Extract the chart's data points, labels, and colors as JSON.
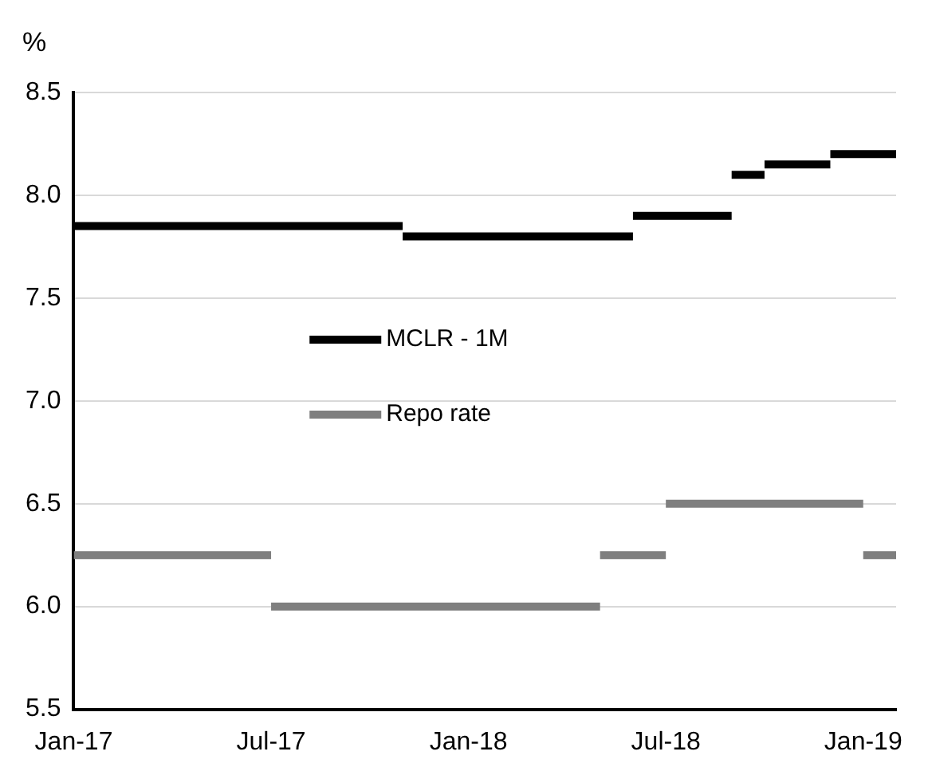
{
  "chart_data": {
    "type": "line",
    "ylabel": "%",
    "xlim": [
      "2017-01",
      "2019-02"
    ],
    "xticks": [
      {
        "value": "2017-01",
        "label": "Jan-17"
      },
      {
        "value": "2017-07",
        "label": "Jul-17"
      },
      {
        "value": "2018-01",
        "label": "Jan-18"
      },
      {
        "value": "2018-07",
        "label": "Jul-18"
      },
      {
        "value": "2019-01",
        "label": "Jan-19"
      }
    ],
    "ylim": [
      5.5,
      8.5
    ],
    "yticks": [
      {
        "value": 5.5,
        "label": "5.5"
      },
      {
        "value": 6,
        "label": "6.0"
      },
      {
        "value": 6.5,
        "label": "6.5"
      },
      {
        "value": 7,
        "label": "7.0"
      },
      {
        "value": 7.5,
        "label": "7.5"
      },
      {
        "value": 8,
        "label": "8.0"
      },
      {
        "value": 8.5,
        "label": "8.5"
      }
    ],
    "grid": "y",
    "legend": "center",
    "marker": "none",
    "line_style": "solid",
    "series": [
      {
        "name": "MCLR - 1M",
        "color": "#000000",
        "x": [
          "2017-01",
          "2017-11",
          "2017-11",
          "2018-06",
          "2018-06",
          "2018-09",
          "2018-09",
          "2018-10",
          "2018-10",
          "2018-12",
          "2018-12",
          "2019-02"
        ],
        "values": [
          7.85,
          7.85,
          7.8,
          7.8,
          7.9,
          7.9,
          8.1,
          8.1,
          8.15,
          8.15,
          8.2,
          8.2
        ]
      },
      {
        "name": "Repo rate",
        "color": "#7f7f7f",
        "x": [
          "2017-01",
          "2017-07",
          "2017-07",
          "2018-05",
          "2018-05",
          "2018-07",
          "2018-07",
          "2019-01",
          "2019-01",
          "2019-02"
        ],
        "values": [
          6.25,
          6.25,
          6,
          6,
          6.25,
          6.25,
          6.5,
          6.5,
          6.25,
          6.25
        ]
      }
    ]
  }
}
